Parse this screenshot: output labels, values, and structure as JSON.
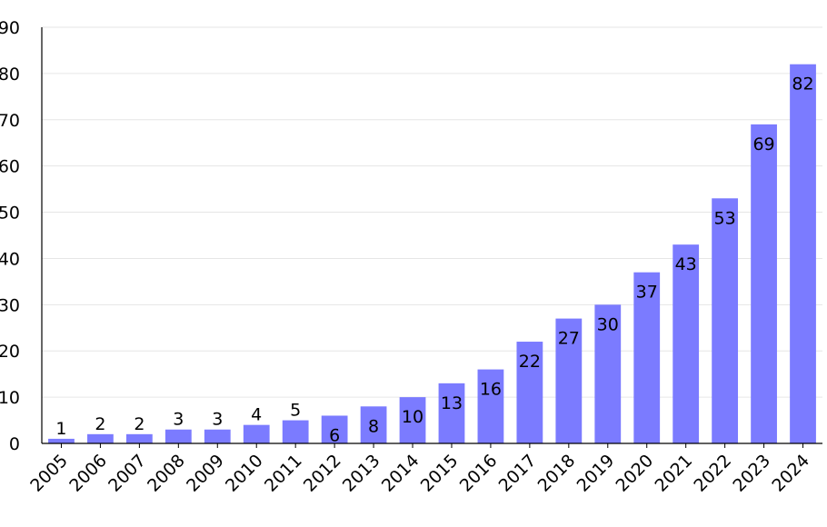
{
  "chart_data": {
    "type": "bar",
    "categories": [
      "2005",
      "2006",
      "2007",
      "2008",
      "2009",
      "2010",
      "2011",
      "2012",
      "2013",
      "2014",
      "2015",
      "2016",
      "2017",
      "2018",
      "2019",
      "2020",
      "2021",
      "2022",
      "2023",
      "2024"
    ],
    "values": [
      1,
      2,
      2,
      3,
      3,
      4,
      5,
      6,
      8,
      10,
      13,
      16,
      22,
      27,
      30,
      37,
      43,
      53,
      69,
      82
    ],
    "data_labels": [
      "1",
      "2",
      "2",
      "3",
      "3",
      "4",
      "5",
      "6",
      "8",
      "10",
      "13",
      "16",
      "22",
      "27",
      "30",
      "37",
      "43",
      "53",
      "69",
      "82"
    ],
    "title": "",
    "xlabel": "",
    "ylabel": "",
    "ylim": [
      0,
      90
    ],
    "yticks": [
      0,
      10,
      20,
      30,
      40,
      50,
      60,
      70,
      80,
      90
    ],
    "grid": true,
    "legend": "none",
    "colors": {
      "bar": "#7b7bff",
      "grid": "#e6e6e6",
      "axis": "#000000",
      "text": "#000000"
    }
  }
}
